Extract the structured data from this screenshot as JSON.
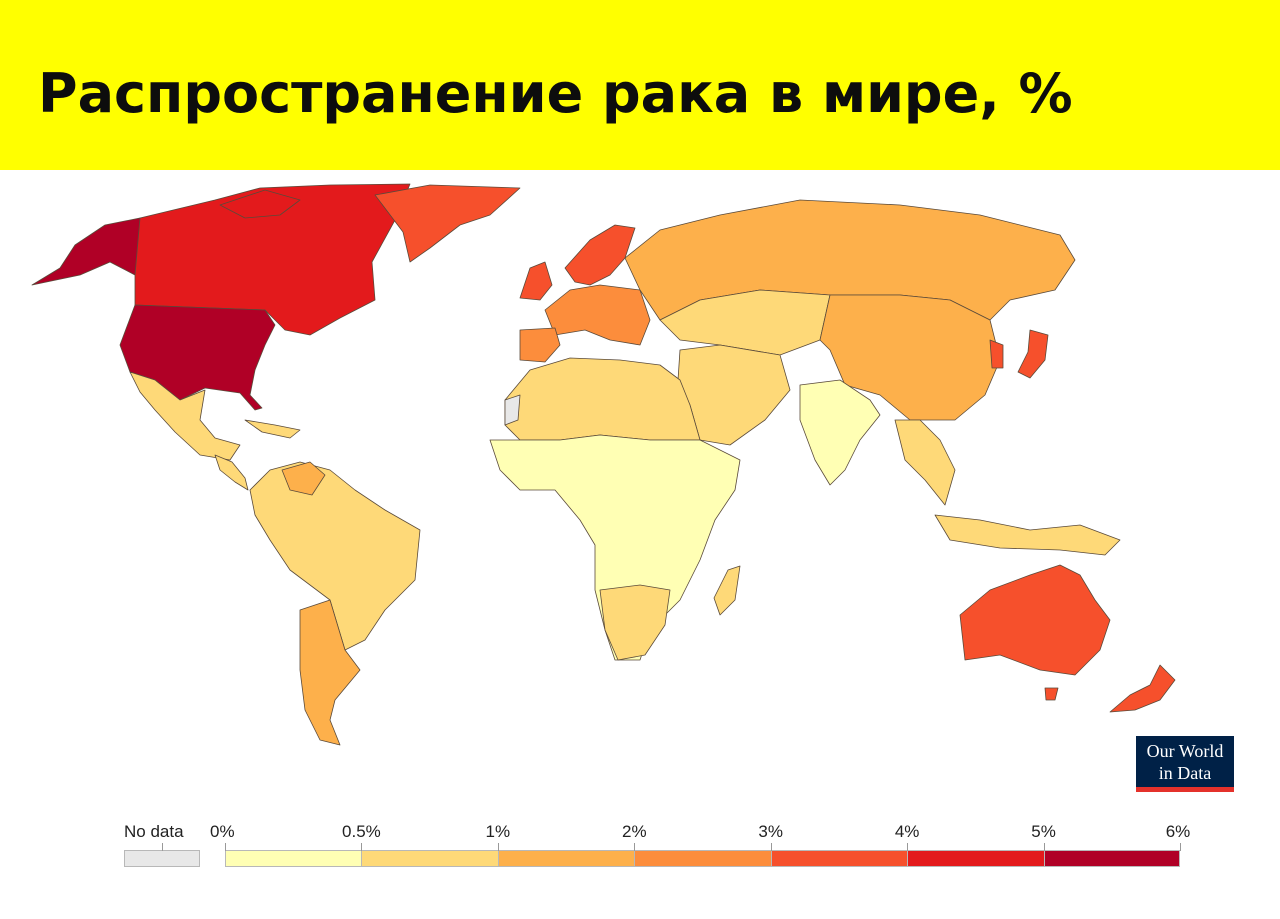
{
  "title": "Распространение рака в мире, %",
  "logo": {
    "line1": "Our World",
    "line2": "in Data"
  },
  "legend": {
    "no_data_label": "No data",
    "no_data_color": "#e8e8e8",
    "ticks": [
      "0%",
      "0.5%",
      "1%",
      "2%",
      "3%",
      "4%",
      "5%",
      "6%"
    ],
    "colors": [
      "#ffffb4",
      "#fed978",
      "#fdb04b",
      "#fc8d3c",
      "#f6502c",
      "#e31a1c",
      "#b00026"
    ]
  },
  "map_colors": {
    "bin_0_to_05": "#ffffb4",
    "bin_05_to_1": "#fed978",
    "bin_1_to_2": "#fdb04b",
    "bin_2_to_3": "#fc8d3c",
    "bin_3_to_4": "#f6502c",
    "bin_4_to_5": "#e31a1c",
    "bin_5_to_6": "#b00026",
    "no_data": "#e8e8e8"
  }
}
